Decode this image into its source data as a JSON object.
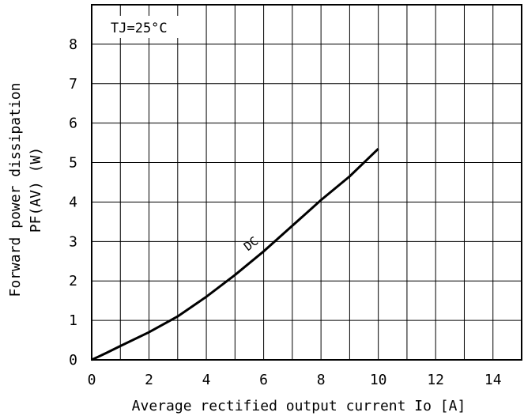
{
  "chart_data": {
    "type": "line",
    "xlabel": "Average rectified output current Io [A]",
    "ylabel_line1": "Forward power dissipation",
    "ylabel_line2": "PF(AV) (W)",
    "annotation": "TJ=25°C",
    "xlim": [
      0,
      15
    ],
    "ylim": [
      0,
      9
    ],
    "x_ticks": [
      0,
      2,
      4,
      6,
      8,
      10,
      12,
      14
    ],
    "y_ticks": [
      0,
      1,
      2,
      3,
      4,
      5,
      6,
      7,
      8
    ],
    "x_tick_labels": [
      "0",
      "2",
      "4",
      "6",
      "8",
      "10",
      "12",
      "14"
    ],
    "y_tick_labels": [
      "0",
      "1",
      "2",
      "3",
      "4",
      "5",
      "6",
      "7",
      "8"
    ],
    "grid": true,
    "series": [
      {
        "name": "DC",
        "x": [
          0,
          0.5,
          1,
          2,
          3,
          4,
          5,
          6,
          7,
          8,
          9,
          10
        ],
        "y": [
          0,
          0.17,
          0.35,
          0.7,
          1.1,
          1.6,
          2.15,
          2.75,
          3.4,
          4.05,
          4.65,
          5.35
        ]
      }
    ]
  }
}
